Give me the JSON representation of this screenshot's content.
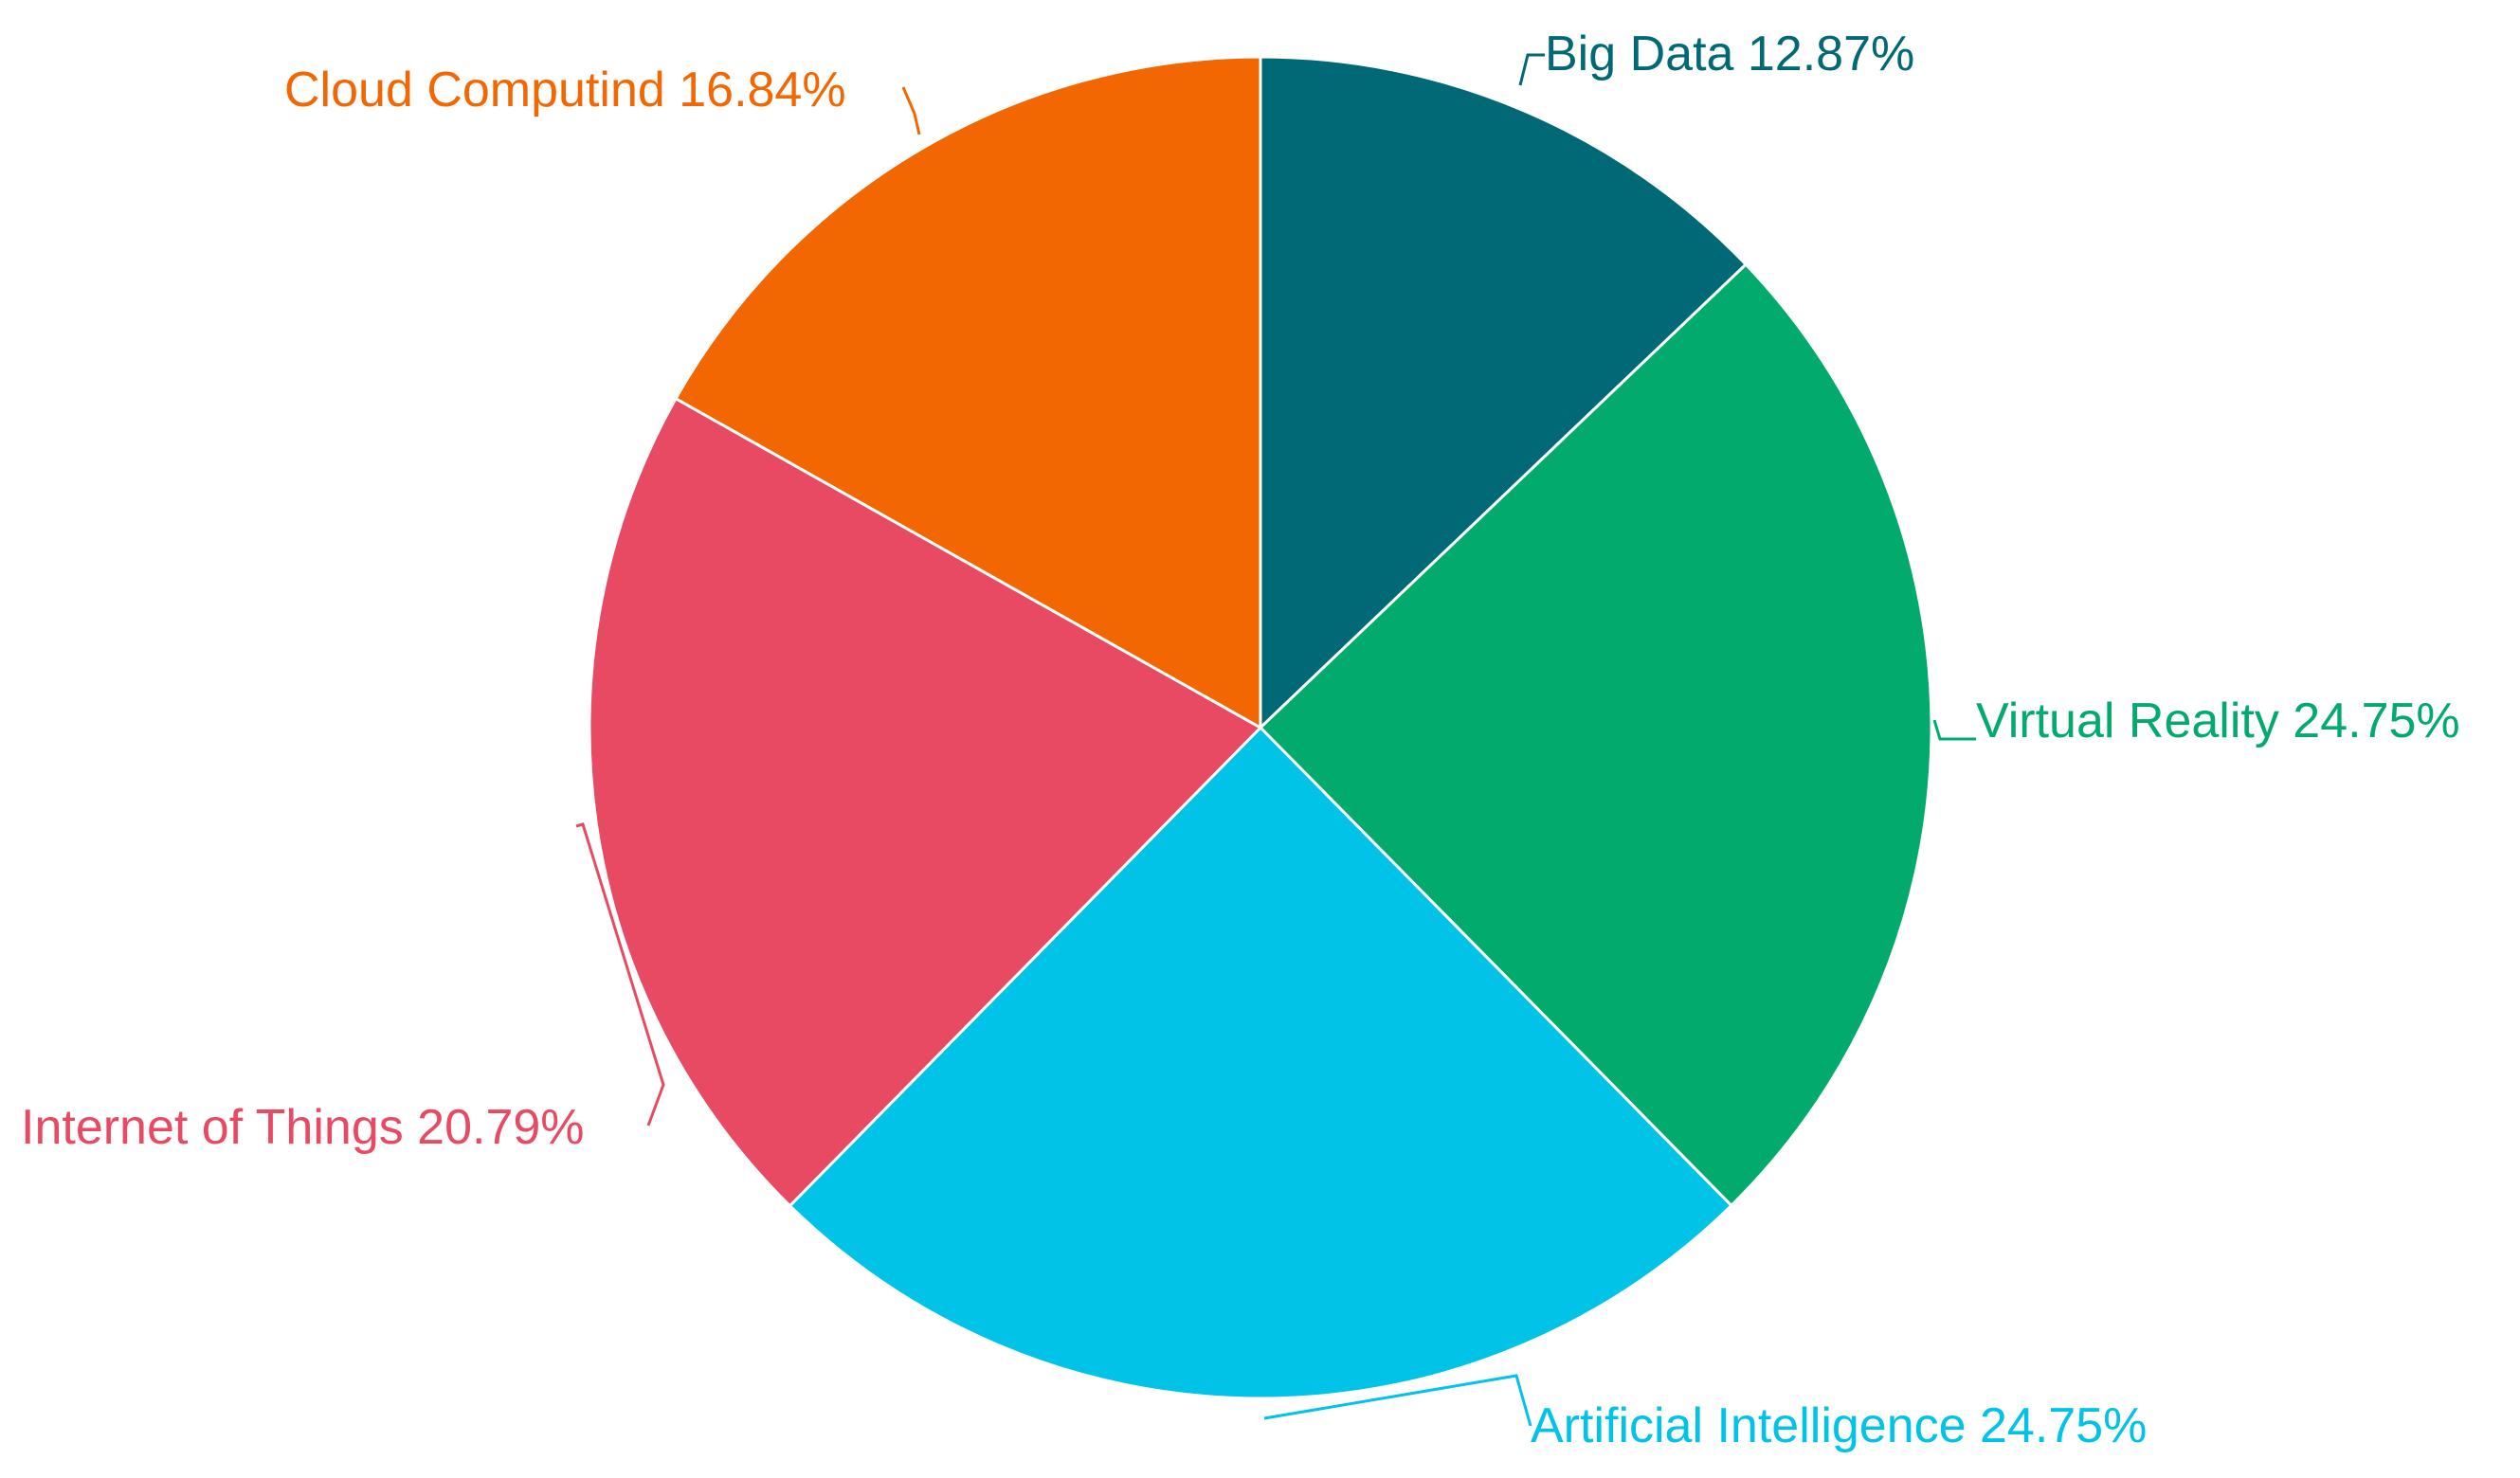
{
  "chart_data": {
    "type": "pie",
    "title": "",
    "slices": [
      {
        "label": "Big Data",
        "value": 12.87,
        "display": "12.87%",
        "color": "#016876"
      },
      {
        "label": "Virtual Reality",
        "value": 24.75,
        "display": "24.75%",
        "color": "#02AB6D"
      },
      {
        "label": "Artificial Intelligence",
        "value": 24.75,
        "display": "24.75%",
        "color": "#01C3E8"
      },
      {
        "label": "Internet of Things",
        "value": 20.79,
        "display": "20.79%",
        "color": "#E84A63"
      },
      {
        "label": "Cloud Computind",
        "value": 16.84,
        "display": "16.84%",
        "color": "#F26701"
      }
    ],
    "start_angle": "12 o'clock",
    "direction": "clockwise",
    "legend": "none",
    "labels": "outside with leader lines"
  }
}
